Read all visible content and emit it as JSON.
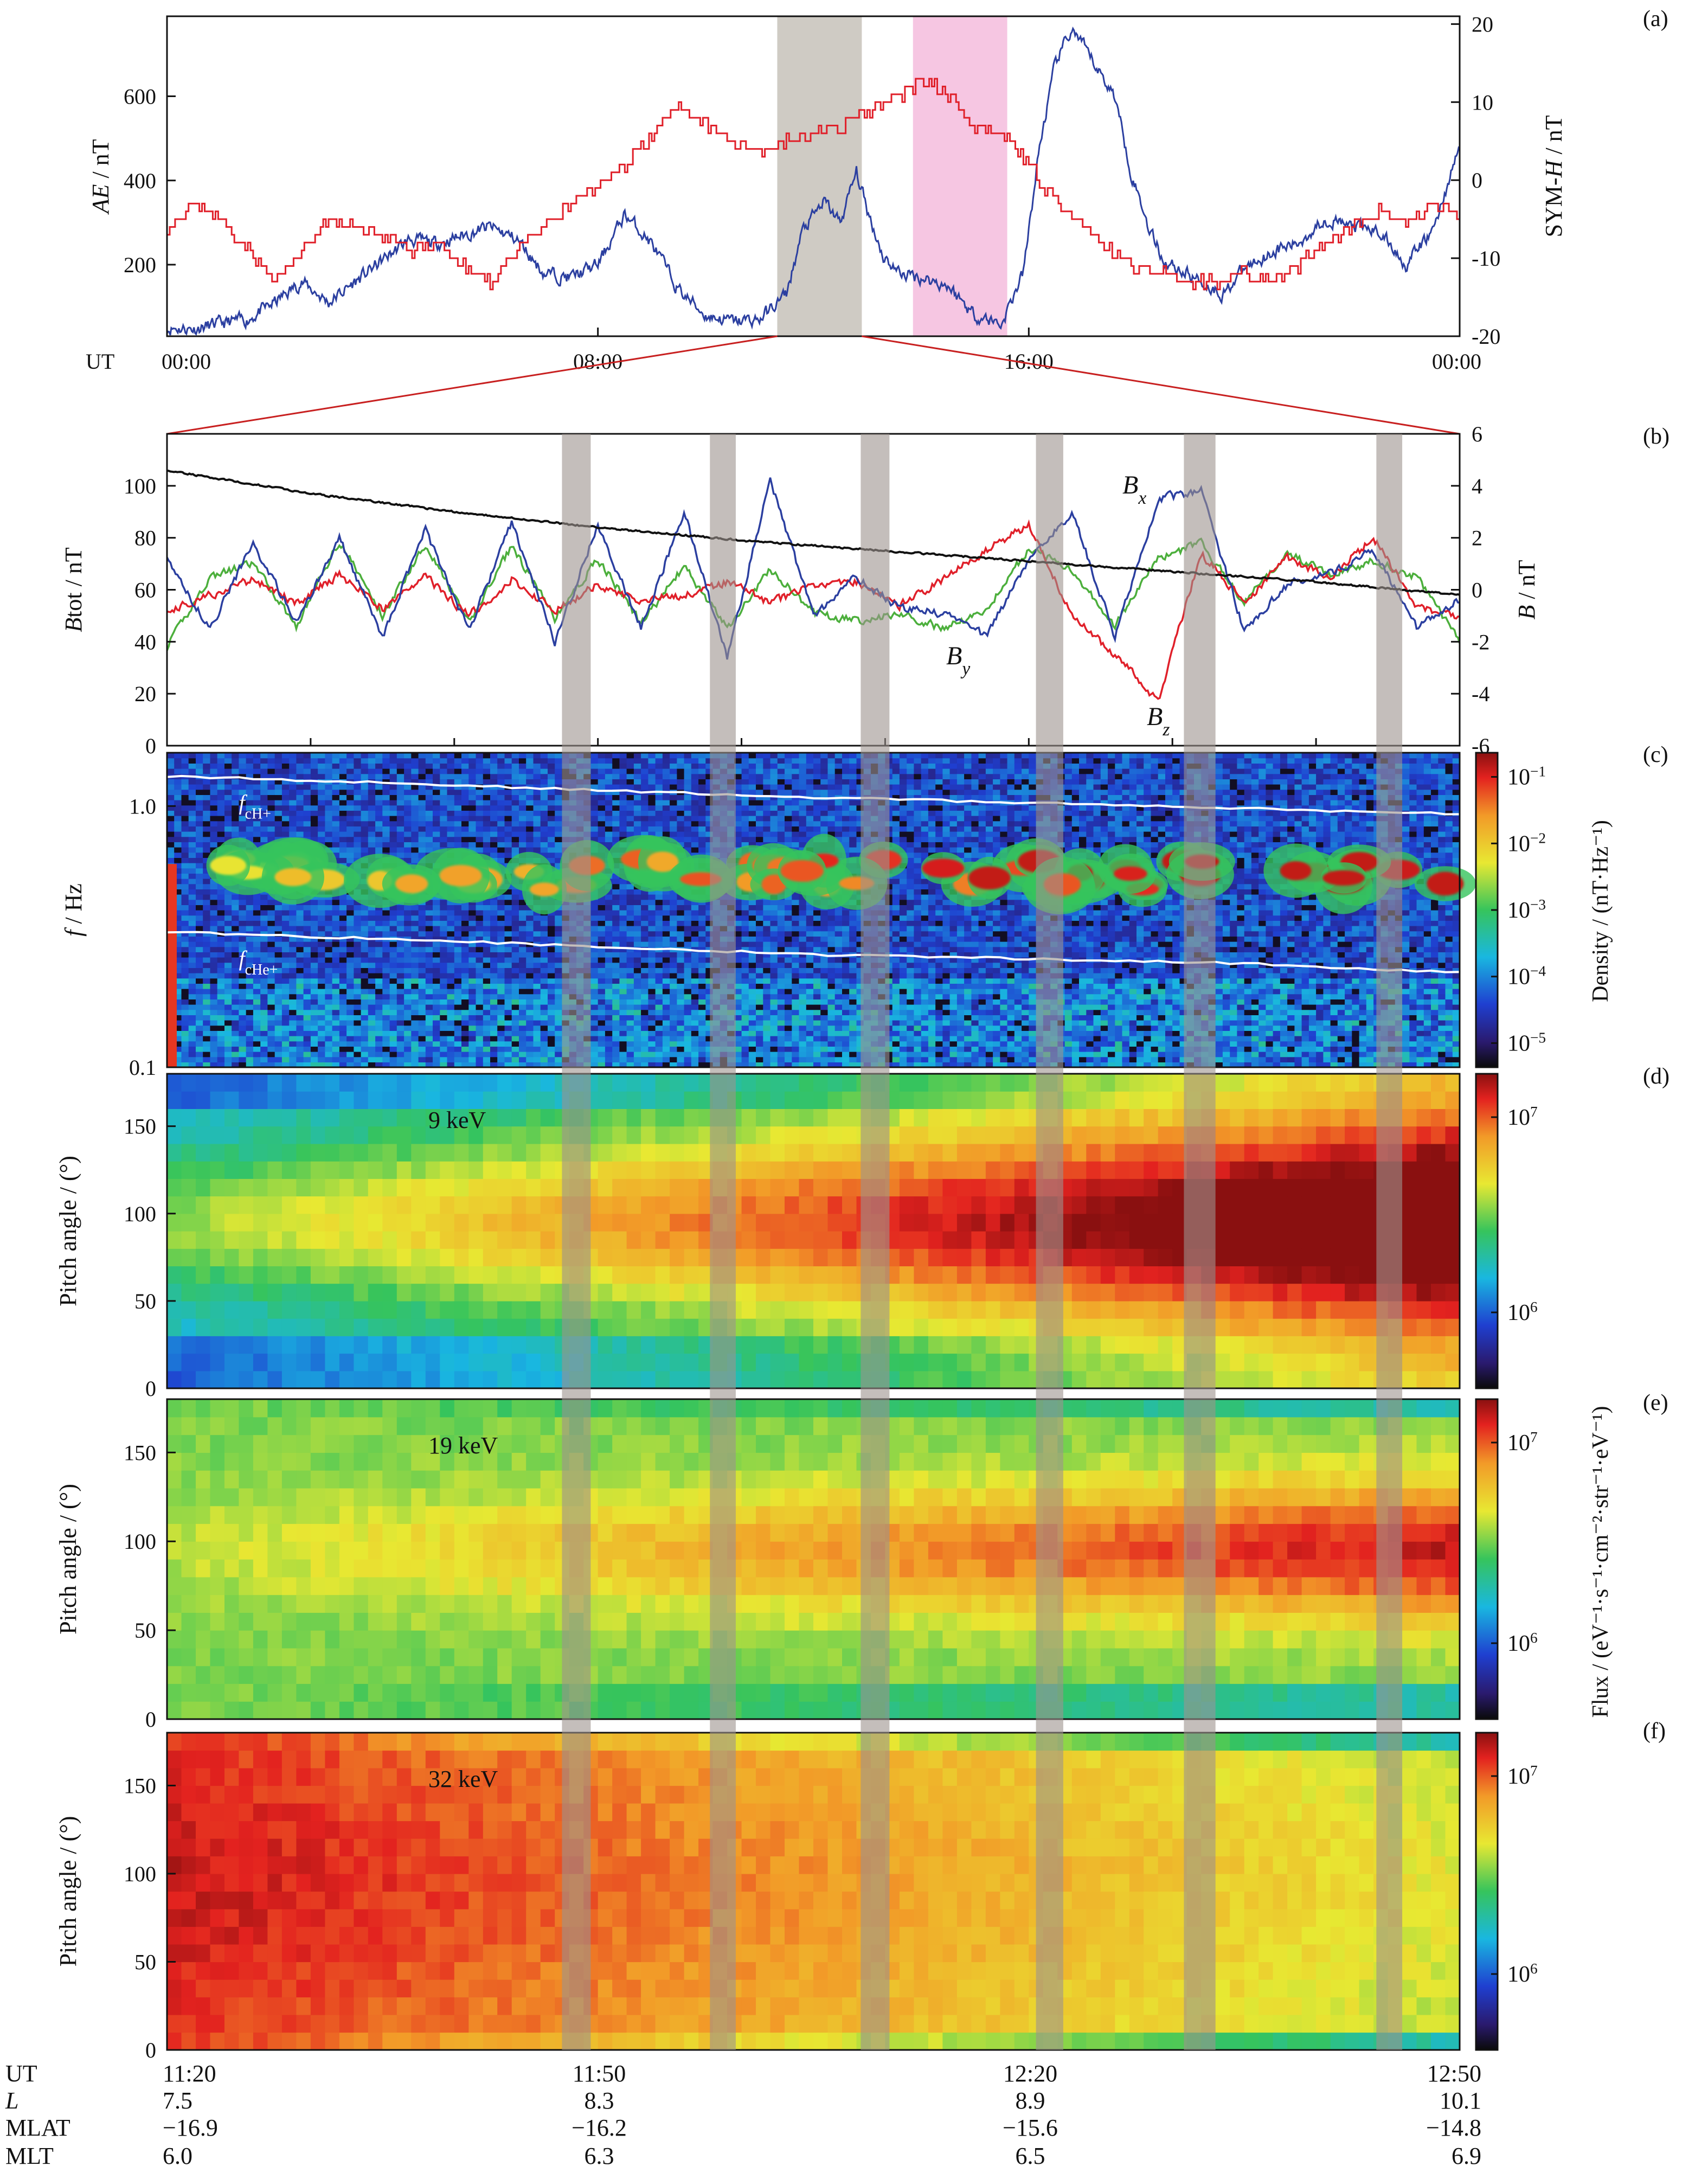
{
  "panel_letters": [
    "(a)",
    "(b)",
    "(c)",
    "(d)",
    "(e)",
    "(f)"
  ],
  "colors": {
    "ae": "#2b3fa0",
    "symh": "#e0202a",
    "bx": "#2b3fa0",
    "by": "#4caf3c",
    "bz": "#e0202a",
    "btot": "#111111",
    "gray_shade": "#cfcbc4",
    "pink_shade": "#f6c6e2",
    "event_band": "#9c938e",
    "gyro_line": "#ffffff"
  },
  "chart_data": [
    {
      "type": "line",
      "panel": "(a)",
      "x_unit": "UT hours",
      "x_axis_prefix": "UT",
      "x_ticks": [
        0,
        8,
        16,
        24
      ],
      "x_tick_labels": [
        "00:00",
        "08:00",
        "16:00",
        "00:00"
      ],
      "xlim": [
        0,
        24
      ],
      "ylabel_left": [
        "AE",
        " / nT"
      ],
      "ylim_left": [
        30,
        790
      ],
      "yticks_left": [
        200,
        400,
        600
      ],
      "ylabel_right": [
        "SYM-",
        "H",
        " / nT"
      ],
      "ylim_right": [
        -20,
        21
      ],
      "yticks_right": [
        -20,
        -10,
        0,
        10,
        20
      ],
      "shaded_intervals": [
        {
          "start": 11.33,
          "end": 12.9,
          "style": "gray"
        },
        {
          "start": 13.85,
          "end": 15.6,
          "style": "pink"
        }
      ],
      "series": [
        {
          "name": "AE",
          "axis": "left",
          "x": [
            0,
            0.5,
            1,
            1.5,
            2,
            2.5,
            3,
            3.5,
            4,
            4.5,
            5,
            5.5,
            6,
            6.5,
            7,
            7.5,
            8,
            8.5,
            9,
            9.5,
            10,
            10.5,
            11,
            11.5,
            11.8,
            12.2,
            12.5,
            12.8,
            13,
            13.3,
            13.6,
            14,
            14.5,
            15,
            15.5,
            15.9,
            16.2,
            16.5,
            16.8,
            17,
            17.3,
            17.6,
            17.9,
            18.2,
            18.5,
            18.8,
            19.2,
            19.6,
            20,
            20.5,
            21,
            21.5,
            22,
            22.5,
            23,
            23.5,
            24
          ],
          "values": [
            50,
            48,
            60,
            70,
            110,
            160,
            110,
            160,
            210,
            260,
            250,
            270,
            290,
            260,
            180,
            170,
            200,
            320,
            250,
            140,
            80,
            65,
            70,
            130,
            280,
            350,
            300,
            420,
            330,
            220,
            180,
            170,
            150,
            80,
            60,
            180,
            480,
            680,
            760,
            720,
            660,
            600,
            420,
            300,
            210,
            190,
            160,
            130,
            190,
            230,
            250,
            310,
            290,
            280,
            200,
            280,
            480
          ]
        },
        {
          "name": "SYM-H",
          "axis": "right",
          "x": [
            0,
            0.5,
            1,
            1.5,
            2,
            2.5,
            3,
            3.5,
            4,
            4.5,
            5,
            5.5,
            6,
            6.5,
            7,
            7.5,
            8,
            8.5,
            9,
            9.5,
            10,
            10.5,
            11,
            11.5,
            12,
            12.5,
            13,
            13.5,
            14,
            14.5,
            15,
            15.5,
            16,
            16.5,
            17,
            17.5,
            18,
            18.5,
            19,
            19.5,
            20,
            20.5,
            21,
            21.5,
            22,
            22.5,
            23,
            23.5,
            24
          ],
          "values": [
            -6,
            -3,
            -5,
            -9,
            -13,
            -9,
            -5,
            -6,
            -7,
            -9,
            -8,
            -11,
            -13,
            -9,
            -6,
            -3,
            -1,
            2,
            6,
            9,
            7,
            5,
            4,
            5,
            6,
            7,
            9,
            10,
            13,
            11,
            7,
            6,
            2,
            -3,
            -6,
            -9,
            -11,
            -12,
            -13,
            -13,
            -12,
            -13,
            -11,
            -8,
            -6,
            -4,
            -6,
            -3,
            -5
          ]
        }
      ]
    },
    {
      "type": "line",
      "panel": "(b)",
      "x_unit": "minutes after 11:20 UT",
      "xlim": [
        0,
        90
      ],
      "ylabel_left": [
        "B",
        "tot",
        " / nT"
      ],
      "ylim_left": [
        0,
        120
      ],
      "yticks_left": [
        0,
        20,
        40,
        60,
        80,
        100
      ],
      "ylabel_right": [
        "B",
        " / nT"
      ],
      "ylim_right": [
        -6,
        6
      ],
      "yticks_right": [
        -6,
        -4,
        -2,
        0,
        2,
        4,
        6
      ],
      "event_bands": [
        [
          27.5,
          29.5
        ],
        [
          37.8,
          39.6
        ],
        [
          48.3,
          50.3
        ],
        [
          60.5,
          62.4
        ],
        [
          70.8,
          73.0
        ],
        [
          84.2,
          86.0
        ]
      ],
      "series": [
        {
          "name": [
            "B",
            "tot"
          ],
          "label_visible": false,
          "axis": "left",
          "x": [
            0,
            10,
            20,
            30,
            40,
            50,
            60,
            70,
            80,
            90
          ],
          "values": [
            106,
            97,
            90,
            84,
            79,
            75,
            71,
            67,
            63,
            58
          ]
        },
        {
          "name": [
            "B",
            "x"
          ],
          "axis": "right",
          "x": [
            0,
            3,
            6,
            9,
            12,
            15,
            18,
            21,
            24,
            27,
            30,
            33,
            36,
            39,
            42,
            45,
            48,
            51,
            54,
            57,
            60,
            63,
            66,
            69,
            72,
            75,
            78,
            81,
            84,
            87,
            90
          ],
          "values": [
            1.2,
            -1.5,
            1.8,
            -1.3,
            2.0,
            -1.8,
            2.3,
            -1.6,
            2.6,
            -2.0,
            2.5,
            -1.5,
            3.0,
            -2.6,
            4.2,
            -1.0,
            0.5,
            -0.7,
            -0.9,
            -1.8,
            1.2,
            3.0,
            -1.8,
            3.5,
            3.8,
            -1.6,
            0.2,
            0.6,
            1.5,
            -1.4,
            -0.4
          ]
        },
        {
          "name": [
            "B",
            "y"
          ],
          "axis": "right",
          "x": [
            0,
            3,
            6,
            9,
            12,
            15,
            18,
            21,
            24,
            27,
            30,
            33,
            36,
            39,
            42,
            45,
            48,
            51,
            54,
            57,
            60,
            63,
            66,
            69,
            72,
            75,
            78,
            81,
            84,
            87,
            90
          ],
          "values": [
            -2.2,
            0.5,
            1.0,
            -1.4,
            1.9,
            -1.0,
            1.8,
            -1.3,
            1.7,
            -1.1,
            1.2,
            -1.3,
            0.9,
            -1.5,
            0.8,
            -0.9,
            -1.2,
            -0.9,
            -1.5,
            -0.8,
            1.6,
            0.8,
            -1.4,
            1.2,
            1.8,
            -0.5,
            1.4,
            0.6,
            1.1,
            0.5,
            -2.0
          ]
        },
        {
          "name": [
            "B",
            "z"
          ],
          "axis": "right",
          "x": [
            0,
            3,
            6,
            9,
            12,
            15,
            18,
            21,
            24,
            27,
            30,
            33,
            36,
            39,
            42,
            45,
            48,
            51,
            54,
            57,
            60,
            63,
            66,
            69,
            72,
            75,
            78,
            81,
            84,
            87,
            90
          ],
          "values": [
            -0.8,
            -0.2,
            0.4,
            -0.5,
            0.6,
            -0.7,
            0.5,
            -1.0,
            0.4,
            -0.8,
            0.2,
            -0.4,
            -0.2,
            0.3,
            -0.5,
            0.2,
            0.3,
            -0.6,
            0.4,
            1.5,
            2.5,
            -1.0,
            -2.5,
            -4.3,
            1.4,
            -0.5,
            1.2,
            0.5,
            2.0,
            -0.6,
            -1.1
          ]
        }
      ]
    },
    {
      "type": "heatmap",
      "panel": "(c)",
      "ylabel": [
        "f",
        " / Hz"
      ],
      "yscale": "log",
      "ylim": [
        0.1,
        1.6
      ],
      "ytick_labels": [
        {
          "value": 0.1,
          "label": "0.1"
        },
        {
          "value": 1.0,
          "label": "1.0"
        }
      ],
      "colorbar_label": "Density / (nT·Hz⁻¹)",
      "colorbar_ticks": [
        {
          "base": "10",
          "exp": "−1"
        },
        {
          "base": "10",
          "exp": "−2"
        },
        {
          "base": "10",
          "exp": "−3"
        },
        {
          "base": "10",
          "exp": "−4"
        },
        {
          "base": "10",
          "exp": "−5"
        }
      ],
      "lines": [
        {
          "name": [
            "f",
            "cH+"
          ],
          "x": [
            0,
            15,
            30,
            45,
            60,
            75,
            90
          ],
          "values": [
            1.3,
            1.23,
            1.15,
            1.08,
            1.03,
            0.98,
            0.93
          ]
        },
        {
          "name": [
            "f",
            "cHe+"
          ],
          "x": [
            0,
            15,
            30,
            45,
            60,
            75,
            90
          ],
          "values": [
            0.33,
            0.31,
            0.29,
            0.27,
            0.26,
            0.25,
            0.23
          ]
        }
      ],
      "wave_band_center_hz": 0.55
    },
    {
      "type": "heatmap",
      "panel": "(d)",
      "energy_label": "9 keV",
      "ylabel": "Pitch angle / (°)",
      "ylim": [
        0,
        180
      ],
      "yticks": [
        0,
        50,
        100,
        150
      ],
      "colorbar_ticks": [
        {
          "base": "10",
          "exp": "7"
        },
        {
          "base": "10",
          "exp": "6"
        }
      ]
    },
    {
      "type": "heatmap",
      "panel": "(e)",
      "energy_label": "19 keV",
      "ylabel": "Pitch angle / (°)",
      "ylim": [
        0,
        180
      ],
      "yticks": [
        0,
        50,
        100,
        150
      ],
      "colorbar_ticks": [
        {
          "base": "10",
          "exp": "7"
        },
        {
          "base": "10",
          "exp": "6"
        }
      ]
    },
    {
      "type": "heatmap",
      "panel": "(f)",
      "energy_label": "32 keV",
      "ylabel": "Pitch angle / (°)",
      "ylim": [
        0,
        180
      ],
      "yticks": [
        0,
        50,
        100,
        150
      ],
      "colorbar_ticks": [
        {
          "base": "10",
          "exp": "7"
        },
        {
          "base": "10",
          "exp": "6"
        }
      ]
    }
  ],
  "flux_colorbar_label": "Flux / (eV⁻¹·s⁻¹·cm⁻²·str⁻¹·eV⁻¹)",
  "footer": {
    "row_labels": [
      "UT",
      "L",
      "MLAT",
      "MLT"
    ],
    "columns": [
      {
        "UT": "11:20",
        "L": "7.5",
        "MLAT": "−16.9",
        "MLT": "6.0"
      },
      {
        "UT": "11:50",
        "L": "8.3",
        "MLAT": "−16.2",
        "MLT": "6.3"
      },
      {
        "UT": "12:20",
        "L": "8.9",
        "MLAT": "−15.6",
        "MLT": "6.5"
      },
      {
        "UT": "12:50",
        "L": "10.1",
        "MLAT": "−14.8",
        "MLT": "6.9"
      }
    ]
  }
}
